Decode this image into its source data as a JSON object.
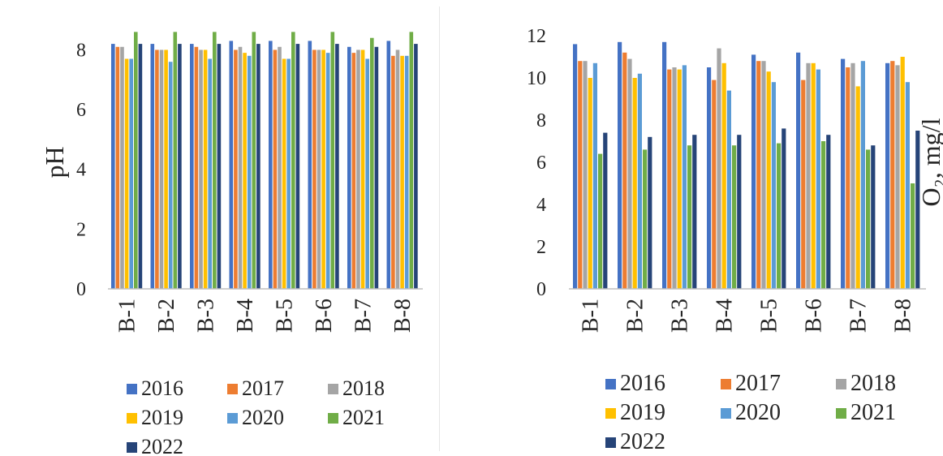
{
  "chart_data": [
    {
      "type": "bar",
      "title": "",
      "xlabel": "",
      "ylabel": "pH",
      "ylim": [
        0,
        8.8
      ],
      "yticks": [
        0,
        2,
        4,
        6,
        8
      ],
      "grid": false,
      "legend_position": "bottom",
      "categories": [
        "B-1",
        "B-2",
        "B-3",
        "B-4",
        "B-5",
        "B-6",
        "B-7",
        "B-8"
      ],
      "series": [
        {
          "name": "2016",
          "color": "#4472c4",
          "values": [
            8.2,
            8.2,
            8.2,
            8.3,
            8.3,
            8.3,
            8.1,
            8.3
          ]
        },
        {
          "name": "2017",
          "color": "#ed7d31",
          "values": [
            8.1,
            8.0,
            8.1,
            8.0,
            8.0,
            8.0,
            7.9,
            7.8
          ]
        },
        {
          "name": "2018",
          "color": "#a5a5a5",
          "values": [
            8.1,
            8.0,
            8.0,
            8.1,
            8.1,
            8.0,
            8.0,
            8.0
          ]
        },
        {
          "name": "2019",
          "color": "#ffc000",
          "values": [
            7.7,
            8.0,
            8.0,
            7.9,
            7.7,
            8.0,
            8.0,
            7.8
          ]
        },
        {
          "name": "2020",
          "color": "#5b9bd5",
          "values": [
            7.7,
            7.6,
            7.7,
            7.8,
            7.7,
            7.9,
            7.7,
            7.8
          ]
        },
        {
          "name": "2021",
          "color": "#70ad47",
          "values": [
            8.6,
            8.6,
            8.6,
            8.6,
            8.6,
            8.6,
            8.4,
            8.6
          ]
        },
        {
          "name": "2022",
          "color": "#264478",
          "values": [
            8.2,
            8.2,
            8.2,
            8.2,
            8.2,
            8.2,
            8.1,
            8.2
          ]
        }
      ]
    },
    {
      "type": "bar",
      "title": "",
      "xlabel": "",
      "ylabel": "O₂, mg/l",
      "ylim": [
        0,
        12
      ],
      "yticks": [
        0,
        2,
        4,
        6,
        8,
        10,
        12
      ],
      "grid": false,
      "legend_position": "bottom",
      "categories": [
        "B-1",
        "B-2",
        "B-3",
        "B-4",
        "B-5",
        "B-6",
        "B-7",
        "B-8"
      ],
      "series": [
        {
          "name": "2016",
          "color": "#4472c4",
          "values": [
            11.6,
            11.7,
            11.7,
            10.5,
            11.1,
            11.2,
            10.9,
            10.7
          ]
        },
        {
          "name": "2017",
          "color": "#ed7d31",
          "values": [
            10.8,
            11.2,
            10.4,
            9.9,
            10.8,
            9.9,
            10.5,
            10.8
          ]
        },
        {
          "name": "2018",
          "color": "#a5a5a5",
          "values": [
            10.8,
            10.9,
            10.5,
            11.4,
            10.8,
            10.7,
            10.7,
            10.6
          ]
        },
        {
          "name": "2019",
          "color": "#ffc000",
          "values": [
            10.0,
            10.0,
            10.4,
            10.7,
            10.3,
            10.7,
            9.6,
            11.0
          ]
        },
        {
          "name": "2020",
          "color": "#5b9bd5",
          "values": [
            10.7,
            10.2,
            10.6,
            9.4,
            9.8,
            10.4,
            10.8,
            9.8
          ]
        },
        {
          "name": "2021",
          "color": "#70ad47",
          "values": [
            6.4,
            6.6,
            6.8,
            6.8,
            6.9,
            7.0,
            6.6,
            5.0
          ]
        },
        {
          "name": "2022",
          "color": "#264478",
          "values": [
            7.4,
            7.2,
            7.3,
            7.3,
            7.6,
            7.3,
            6.8,
            7.5
          ]
        }
      ]
    }
  ]
}
